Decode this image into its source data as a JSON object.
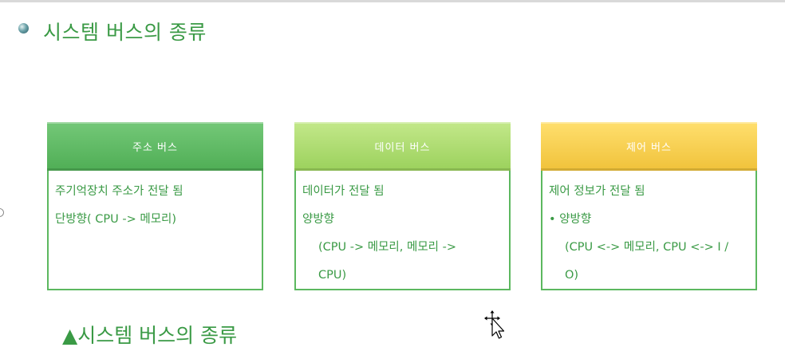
{
  "slide": {
    "heading": "시스템 버스의 종류",
    "caption": "▲시스템 버스의 종류"
  },
  "colors": {
    "text_green": "#3a9a45",
    "box_border": "#5cb85f",
    "address_header": "#5cb85f",
    "data_header": "#a8d86a",
    "control_header": "#f5c842"
  },
  "boxes": [
    {
      "title": "주소 버스",
      "lines": [
        "주기억장치 주소가 전달 됨",
        "단방향( CPU -> 메모리)"
      ]
    },
    {
      "title": "데이터 버스",
      "lines": [
        "데이터가 전달 됨",
        "양방향",
        "(CPU -> 메모리, 메모리 ->",
        "CPU)"
      ]
    },
    {
      "title": "제어 버스",
      "lines": [
        "제어 정보가 전달 됨",
        "• 양방향",
        "(CPU <-> 메모리, CPU <-> I /",
        "O)"
      ]
    }
  ]
}
